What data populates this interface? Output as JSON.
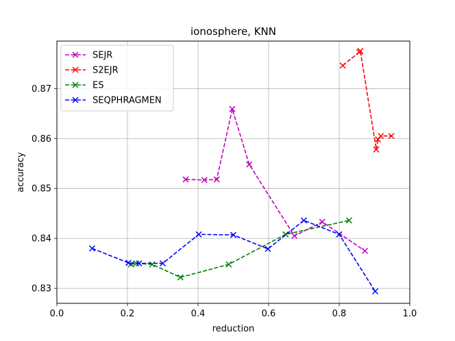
{
  "chart_data": {
    "type": "line",
    "title": "ionosphere, KNN",
    "xlabel": "reduction",
    "ylabel": "accuracy",
    "xlim": [
      0.0,
      1.0
    ],
    "ylim": [
      0.827,
      0.8795
    ],
    "xticks": [
      0.0,
      0.2,
      0.4,
      0.6,
      0.8,
      1.0
    ],
    "xtick_labels": [
      "0.0",
      "0.2",
      "0.4",
      "0.6",
      "0.8",
      "1.0"
    ],
    "yticks": [
      0.83,
      0.84,
      0.85,
      0.86,
      0.87
    ],
    "ytick_labels": [
      "0.83",
      "0.84",
      "0.85",
      "0.86",
      "0.87"
    ],
    "grid": true,
    "legend_position": "top-left",
    "series": [
      {
        "name": "SEJR",
        "color": "#bf00bf",
        "marker": "x",
        "linestyle": "dashed",
        "x": [
          0.365,
          0.418,
          0.453,
          0.497,
          0.545,
          0.673,
          0.752,
          0.873
        ],
        "y": [
          0.8518,
          0.8517,
          0.8518,
          0.8659,
          0.8548,
          0.8405,
          0.8433,
          0.8375
        ]
      },
      {
        "name": "S2EJR",
        "color": "#ff0000",
        "marker": "x",
        "linestyle": "dashed",
        "x": [
          0.81,
          0.857,
          0.86,
          0.905,
          0.91,
          0.918,
          0.948
        ],
        "y": [
          0.8746,
          0.8773,
          0.8775,
          0.8578,
          0.8598,
          0.8605,
          0.8605
        ]
      },
      {
        "name": "ES",
        "color": "#008000",
        "marker": "x",
        "linestyle": "dashed",
        "x": [
          0.21,
          0.225,
          0.27,
          0.35,
          0.487,
          0.648,
          0.828
        ],
        "y": [
          0.8348,
          0.835,
          0.8348,
          0.8322,
          0.8348,
          0.8408,
          0.8436
        ]
      },
      {
        "name": "SEQPHRAGMEN",
        "color": "#0000ff",
        "marker": "x",
        "linestyle": "dashed",
        "x": [
          0.1,
          0.203,
          0.233,
          0.3,
          0.402,
          0.5,
          0.598,
          0.7,
          0.8,
          0.902
        ],
        "y": [
          0.838,
          0.8351,
          0.835,
          0.835,
          0.8408,
          0.8407,
          0.8379,
          0.8436,
          0.8408,
          0.8294
        ]
      }
    ]
  }
}
